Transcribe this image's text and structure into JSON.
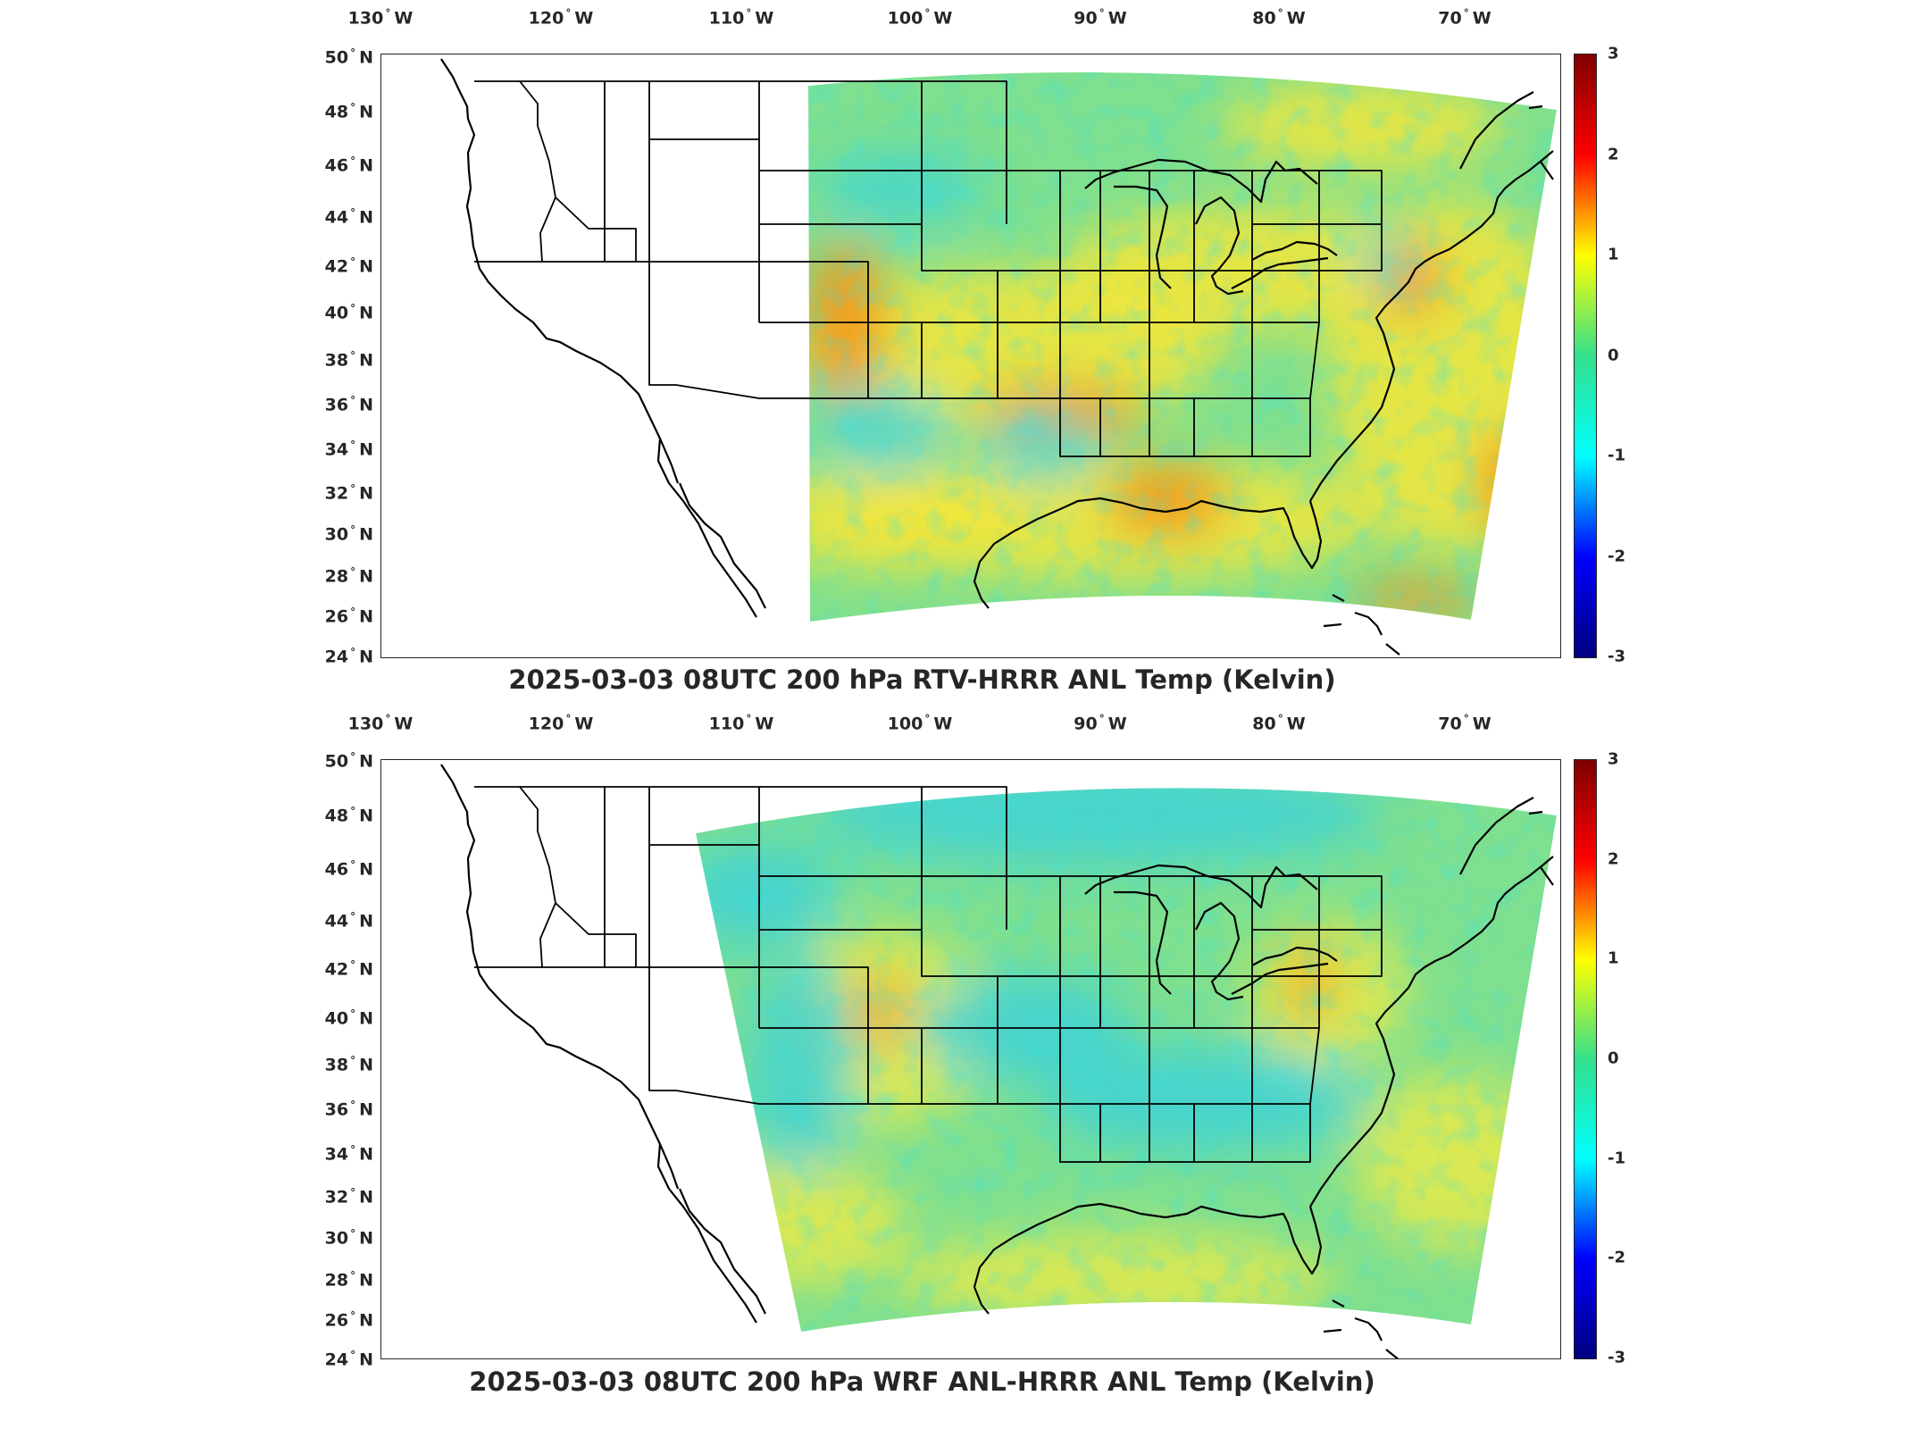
{
  "map_data": {
    "type": "map",
    "projection": "lambert-conformal (CONUS)",
    "lon_labels": [
      "130",
      "120",
      "110",
      "100",
      "90",
      "80",
      "70"
    ],
    "lon_hemisphere": "W",
    "lat_labels": [
      "50",
      "48",
      "46",
      "44",
      "42",
      "40",
      "38",
      "36",
      "34",
      "32",
      "30",
      "28",
      "26",
      "24"
    ],
    "lat_hemisphere": "N",
    "colorbar": {
      "ticks": [
        "3",
        "2",
        "1",
        "0",
        "-1",
        "-2",
        "-3"
      ],
      "colormap": "jet",
      "colors": [
        "#7f0000",
        "#ff0000",
        "#ffff00",
        "#33e08c",
        "#00ffff",
        "#0000ff",
        "#00007f"
      ]
    },
    "panels": [
      {
        "title": "2025-03-03 08UTC 200 hPa RTV-HRRR ANL Temp (Kelvin)",
        "field_colors": {
          "base": "#7fe08f",
          "warm": "#f6e63a",
          "hot": "#f29a1a",
          "cool": "#42d6cf"
        }
      },
      {
        "title": "2025-03-03 08UTC 200 hPa WRF ANL-HRRR ANL Temp (Kelvin)",
        "field_colors": {
          "base": "#7fe08f",
          "warm": "#e8ea4a",
          "hot": "#f2b42a",
          "cool": "#3ed2d6"
        }
      }
    ]
  }
}
